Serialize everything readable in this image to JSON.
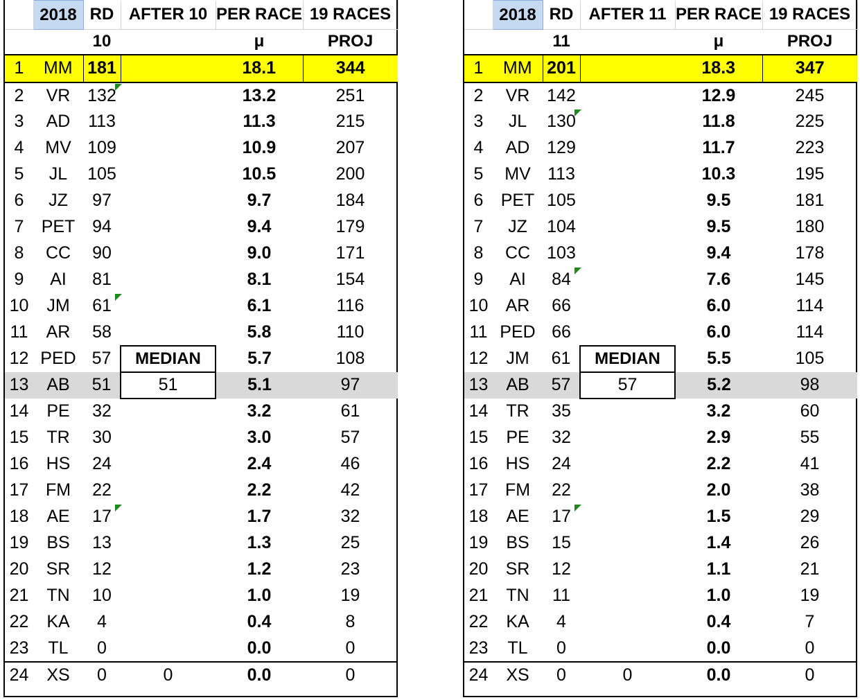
{
  "left": {
    "header": {
      "year": "2018",
      "rd": "RD",
      "after": "AFTER 10",
      "per_race": "PER RACE",
      "races": "19 RACES"
    },
    "subheader": {
      "rd_value": "10",
      "mu": "μ",
      "proj": "PROJ"
    },
    "median_label": "MEDIAN",
    "median_value": "51",
    "after_last": "0",
    "rows": [
      {
        "rank": "1",
        "driver": "MM",
        "points": "181",
        "mu": "18.1",
        "proj": "344"
      },
      {
        "rank": "2",
        "driver": "VR",
        "points": "132",
        "mu": "13.2",
        "proj": "251"
      },
      {
        "rank": "3",
        "driver": "AD",
        "points": "113",
        "mu": "11.3",
        "proj": "215"
      },
      {
        "rank": "4",
        "driver": "MV",
        "points": "109",
        "mu": "10.9",
        "proj": "207"
      },
      {
        "rank": "5",
        "driver": "JL",
        "points": "105",
        "mu": "10.5",
        "proj": "200"
      },
      {
        "rank": "6",
        "driver": "JZ",
        "points": "97",
        "mu": "9.7",
        "proj": "184"
      },
      {
        "rank": "7",
        "driver": "PET",
        "points": "94",
        "mu": "9.4",
        "proj": "179"
      },
      {
        "rank": "8",
        "driver": "CC",
        "points": "90",
        "mu": "9.0",
        "proj": "171"
      },
      {
        "rank": "9",
        "driver": "AI",
        "points": "81",
        "mu": "8.1",
        "proj": "154"
      },
      {
        "rank": "10",
        "driver": "JM",
        "points": "61",
        "mu": "6.1",
        "proj": "116"
      },
      {
        "rank": "11",
        "driver": "AR",
        "points": "58",
        "mu": "5.8",
        "proj": "110"
      },
      {
        "rank": "12",
        "driver": "PED",
        "points": "57",
        "mu": "5.7",
        "proj": "108"
      },
      {
        "rank": "13",
        "driver": "AB",
        "points": "51",
        "mu": "5.1",
        "proj": "97"
      },
      {
        "rank": "14",
        "driver": "PE",
        "points": "32",
        "mu": "3.2",
        "proj": "61"
      },
      {
        "rank": "15",
        "driver": "TR",
        "points": "30",
        "mu": "3.0",
        "proj": "57"
      },
      {
        "rank": "16",
        "driver": "HS",
        "points": "24",
        "mu": "2.4",
        "proj": "46"
      },
      {
        "rank": "17",
        "driver": "FM",
        "points": "22",
        "mu": "2.2",
        "proj": "42"
      },
      {
        "rank": "18",
        "driver": "AE",
        "points": "17",
        "mu": "1.7",
        "proj": "32"
      },
      {
        "rank": "19",
        "driver": "BS",
        "points": "13",
        "mu": "1.3",
        "proj": "25"
      },
      {
        "rank": "20",
        "driver": "SR",
        "points": "12",
        "mu": "1.2",
        "proj": "23"
      },
      {
        "rank": "21",
        "driver": "TN",
        "points": "10",
        "mu": "1.0",
        "proj": "19"
      },
      {
        "rank": "22",
        "driver": "KA",
        "points": "4",
        "mu": "0.4",
        "proj": "8"
      },
      {
        "rank": "23",
        "driver": "TL",
        "points": "0",
        "mu": "0.0",
        "proj": "0"
      },
      {
        "rank": "24",
        "driver": "XS",
        "points": "0",
        "mu": "0.0",
        "proj": "0"
      }
    ]
  },
  "right": {
    "header": {
      "year": "2018",
      "rd": "RD",
      "after": "AFTER 11",
      "per_race": "PER RACE",
      "races": "19 RACES"
    },
    "subheader": {
      "rd_value": "11",
      "mu": "μ",
      "proj": "PROJ"
    },
    "median_label": "MEDIAN",
    "median_value": "57",
    "after_last": "0",
    "rows": [
      {
        "rank": "1",
        "driver": "MM",
        "points": "201",
        "mu": "18.3",
        "proj": "347"
      },
      {
        "rank": "2",
        "driver": "VR",
        "points": "142",
        "mu": "12.9",
        "proj": "245"
      },
      {
        "rank": "3",
        "driver": "JL",
        "points": "130",
        "mu": "11.8",
        "proj": "225"
      },
      {
        "rank": "4",
        "driver": "AD",
        "points": "129",
        "mu": "11.7",
        "proj": "223"
      },
      {
        "rank": "5",
        "driver": "MV",
        "points": "113",
        "mu": "10.3",
        "proj": "195"
      },
      {
        "rank": "6",
        "driver": "PET",
        "points": "105",
        "mu": "9.5",
        "proj": "181"
      },
      {
        "rank": "7",
        "driver": "JZ",
        "points": "104",
        "mu": "9.5",
        "proj": "180"
      },
      {
        "rank": "8",
        "driver": "CC",
        "points": "103",
        "mu": "9.4",
        "proj": "178"
      },
      {
        "rank": "9",
        "driver": "AI",
        "points": "84",
        "mu": "7.6",
        "proj": "145"
      },
      {
        "rank": "10",
        "driver": "AR",
        "points": "66",
        "mu": "6.0",
        "proj": "114"
      },
      {
        "rank": "11",
        "driver": "PED",
        "points": "66",
        "mu": "6.0",
        "proj": "114"
      },
      {
        "rank": "12",
        "driver": "JM",
        "points": "61",
        "mu": "5.5",
        "proj": "105"
      },
      {
        "rank": "13",
        "driver": "AB",
        "points": "57",
        "mu": "5.2",
        "proj": "98"
      },
      {
        "rank": "14",
        "driver": "TR",
        "points": "35",
        "mu": "3.2",
        "proj": "60"
      },
      {
        "rank": "15",
        "driver": "PE",
        "points": "32",
        "mu": "2.9",
        "proj": "55"
      },
      {
        "rank": "16",
        "driver": "HS",
        "points": "24",
        "mu": "2.2",
        "proj": "41"
      },
      {
        "rank": "17",
        "driver": "FM",
        "points": "22",
        "mu": "2.0",
        "proj": "38"
      },
      {
        "rank": "18",
        "driver": "AE",
        "points": "17",
        "mu": "1.5",
        "proj": "29"
      },
      {
        "rank": "19",
        "driver": "BS",
        "points": "15",
        "mu": "1.4",
        "proj": "26"
      },
      {
        "rank": "20",
        "driver": "SR",
        "points": "12",
        "mu": "1.1",
        "proj": "21"
      },
      {
        "rank": "21",
        "driver": "TN",
        "points": "11",
        "mu": "1.0",
        "proj": "19"
      },
      {
        "rank": "22",
        "driver": "KA",
        "points": "4",
        "mu": "0.4",
        "proj": "7"
      },
      {
        "rank": "23",
        "driver": "TL",
        "points": "0",
        "mu": "0.0",
        "proj": "0"
      },
      {
        "rank": "24",
        "driver": "XS",
        "points": "0",
        "mu": "0.0",
        "proj": "0"
      }
    ]
  },
  "colors": {
    "highlight_row": "#ffff00",
    "median_row": "#d9d9d9",
    "year_cell": "#c5d9f1",
    "comment_marker": "#1e8a1e"
  }
}
